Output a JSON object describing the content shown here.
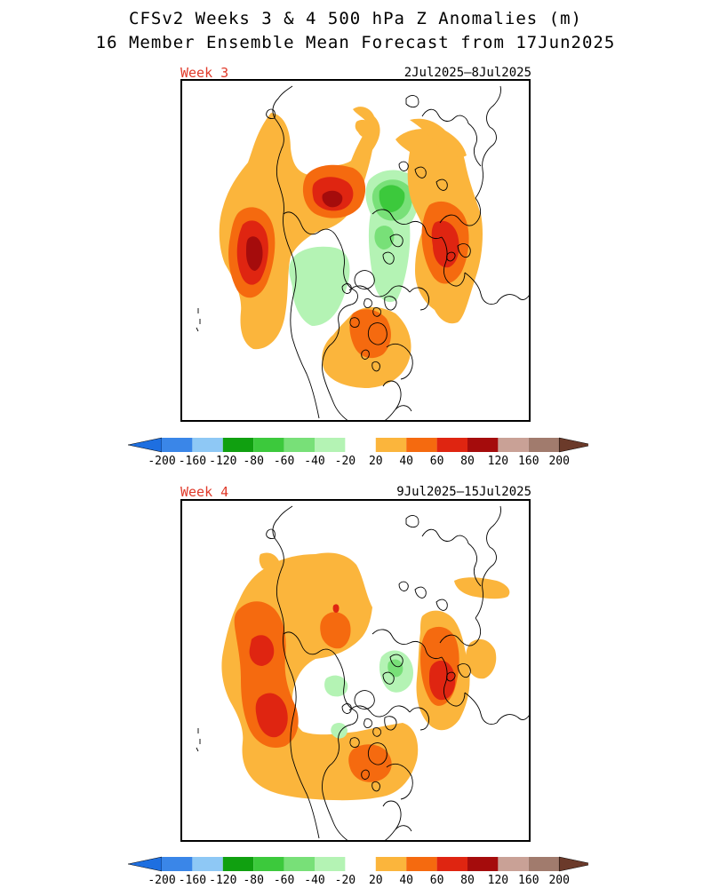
{
  "title": {
    "line1": "CFSv2 Weeks 3 & 4 500 hPa Z Anomalies (m)",
    "line2": "16 Member Ensemble Mean Forecast from 17Jun2025"
  },
  "panels": [
    {
      "week_label": "Week 3",
      "date_range": "2Jul2025–8Jul2025"
    },
    {
      "week_label": "Week 4",
      "date_range": "9Jul2025–15Jul2025"
    }
  ],
  "colorbar": {
    "levels": [
      "-200",
      "-160",
      "-120",
      "-80",
      "-60",
      "-40",
      "-20",
      "20",
      "40",
      "60",
      "80",
      "120",
      "160",
      "200"
    ],
    "colors": [
      "#3a86e8",
      "#8ec8f5",
      "#10a010",
      "#3cc93c",
      "#78e078",
      "#b4f3b4",
      "#ffffff",
      "#fbb53c",
      "#f56a0f",
      "#df2511",
      "#a50c0c",
      "#c9a196",
      "#a17b6d"
    ],
    "under_color": "#1e6fe0",
    "over_color": "#6b3a2a"
  },
  "colors": {
    "positive_20": "#fbb53c",
    "positive_40": "#f56a0f",
    "positive_60": "#df2511",
    "positive_80": "#a50c0c",
    "negative_20": "#b4f3b4",
    "negative_40": "#78e078",
    "negative_60": "#3cc93c",
    "negative_80": "#10a010",
    "week_label": "#e03a2a"
  }
}
